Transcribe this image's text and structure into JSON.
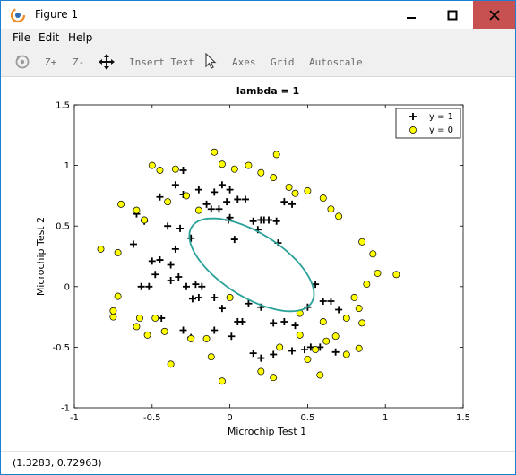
{
  "window": {
    "title": "Figure 1",
    "accent": "#1e7fd0",
    "close_color": "#c75050"
  },
  "menu": {
    "items": [
      "File",
      "Edit",
      "Help"
    ]
  },
  "toolbar": {
    "rotate_icon": "rotate-icon",
    "zoom_in": "Z+",
    "zoom_out": "Z-",
    "pan_icon": "move-arrows-icon",
    "insert_text": "Insert Text",
    "select_icon": "cursor-arrow-icon",
    "axes": "Axes",
    "grid": "Grid",
    "autoscale": "Autoscale"
  },
  "status": {
    "coordinates": "(1.3283, 0.72963)"
  },
  "chart_data": {
    "type": "scatter",
    "title": "lambda = 1",
    "xlabel": "Microchip Test 1",
    "ylabel": "Microchip Test 2",
    "xlim": [
      -1,
      1.5
    ],
    "ylim": [
      -1,
      1.5
    ],
    "xticks": [
      -1,
      -0.5,
      0,
      0.5,
      1,
      1.5
    ],
    "yticks": [
      -1,
      -0.5,
      0,
      0.5,
      1,
      1.5
    ],
    "xtick_labels": [
      "-1",
      "-0.5",
      "0",
      "0.5",
      "1",
      "1.5"
    ],
    "ytick_labels": [
      "-1",
      "-0.5",
      "0",
      "0.5",
      "1",
      "1.5"
    ],
    "grid": false,
    "legend_position": "top-right",
    "series": [
      {
        "name": "y = 1",
        "marker": "plus",
        "color": "#000000",
        "x": [
          -0.3,
          -0.35,
          -0.45,
          -0.3,
          -0.2,
          -0.1,
          -0.05,
          0.0,
          0.05,
          0.1,
          0.2,
          0.25,
          0.3,
          0.35,
          0.4,
          -0.6,
          -0.62,
          -0.55,
          -0.5,
          -0.45,
          -0.4,
          -0.35,
          -0.32,
          -0.25,
          -0.22,
          -0.15,
          -0.12,
          -0.07,
          -0.02,
          -0.01,
          0.0,
          0.15,
          0.22,
          -0.57,
          -0.52,
          -0.48,
          -0.38,
          -0.33,
          -0.28,
          -0.24,
          -0.2,
          -0.18,
          -0.1,
          -0.05,
          0.05,
          0.08,
          0.12,
          0.2,
          0.28,
          0.35,
          0.42,
          0.5,
          0.55,
          0.6,
          0.65,
          0.7,
          -0.44,
          -0.3,
          -0.25,
          -0.1,
          0.01,
          0.15,
          0.2,
          0.28,
          0.4,
          0.48,
          0.52,
          0.58,
          0.68,
          -0.38,
          0.31,
          0.03,
          0.18
        ],
        "y": [
          0.96,
          0.84,
          0.74,
          0.76,
          0.8,
          0.78,
          0.84,
          0.8,
          0.72,
          0.72,
          0.55,
          0.55,
          0.54,
          0.7,
          0.68,
          0.6,
          0.35,
          0.54,
          0.21,
          0.22,
          0.5,
          0.31,
          0.48,
          0.4,
          0.02,
          0.68,
          0.64,
          0.64,
          0.7,
          0.55,
          0.57,
          0.54,
          0.55,
          0.0,
          0.0,
          0.1,
          0.05,
          0.08,
          0.0,
          -0.1,
          -0.09,
          0.0,
          -0.09,
          -0.18,
          -0.29,
          -0.29,
          -0.14,
          -0.17,
          -0.3,
          -0.29,
          -0.32,
          -0.17,
          0.02,
          -0.12,
          -0.12,
          -0.19,
          -0.26,
          -0.36,
          -0.42,
          -0.36,
          -0.41,
          -0.55,
          -0.59,
          -0.56,
          -0.53,
          -0.52,
          -0.5,
          -0.5,
          -0.54,
          0.18,
          0.36,
          0.39,
          0.47
        ]
      },
      {
        "name": "y = 0",
        "marker": "circle",
        "color": "#ffff00",
        "x": [
          -0.83,
          -0.72,
          -0.75,
          -0.7,
          -0.6,
          -0.55,
          -0.5,
          -0.45,
          -0.4,
          -0.35,
          -0.28,
          -0.2,
          -0.1,
          -0.05,
          0.03,
          0.12,
          0.2,
          0.28,
          0.3,
          0.38,
          0.42,
          0.5,
          0.6,
          0.65,
          0.7,
          0.85,
          0.92,
          0.95,
          1.07,
          0.88,
          0.8,
          0.83,
          0.85,
          0.75,
          0.68,
          0.62,
          0.55,
          0.5,
          0.45,
          0.32,
          0.28,
          0.2,
          -0.05,
          -0.12,
          -0.15,
          -0.25,
          -0.38,
          -0.42,
          -0.48,
          -0.58,
          -0.72,
          -0.75,
          -0.6,
          -0.53,
          0.0,
          0.58,
          0.45,
          0.83,
          0.75,
          0.6
        ],
        "y": [
          0.31,
          0.28,
          -0.25,
          0.68,
          0.63,
          0.55,
          1.0,
          0.96,
          0.7,
          0.97,
          0.75,
          0.63,
          1.11,
          1.01,
          0.97,
          1.0,
          0.94,
          0.9,
          1.09,
          0.82,
          0.77,
          0.79,
          0.73,
          0.64,
          0.58,
          0.37,
          0.27,
          0.11,
          0.1,
          0.02,
          -0.09,
          -0.18,
          -0.3,
          -0.26,
          -0.41,
          -0.45,
          -0.52,
          -0.6,
          -0.4,
          -0.5,
          -0.75,
          -0.7,
          -0.78,
          -0.58,
          -0.43,
          -0.43,
          -0.64,
          -0.37,
          -0.26,
          -0.26,
          -0.08,
          -0.2,
          -0.33,
          -0.4,
          -0.09,
          -0.73,
          -0.22,
          -0.51,
          -0.56,
          -0.29
        ]
      }
    ],
    "decision_boundary": {
      "type": "ellipse",
      "color": "#2aa198",
      "center": [
        0.14,
        0.18
      ],
      "semi_axes": [
        0.5,
        0.24
      ],
      "angle_deg": -43
    }
  }
}
